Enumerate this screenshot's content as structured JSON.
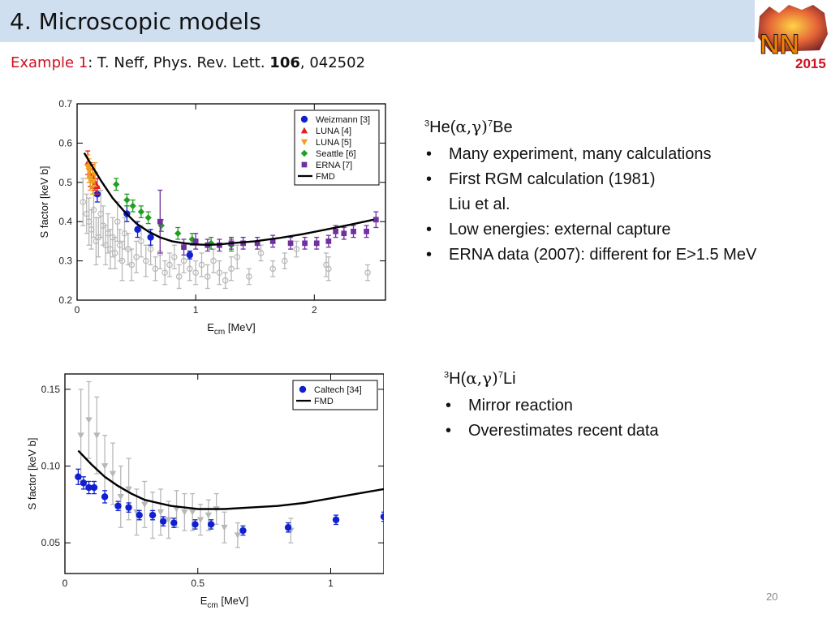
{
  "slide": {
    "title": "4. Microscopic models",
    "reference": {
      "example": "Example 1",
      "rest": ": T. Neff, Phys. Rev. Lett. ",
      "volume": "106",
      "page": ", 042502"
    },
    "logo": {
      "text": "NN",
      "year": "2015"
    },
    "page_number": "20"
  },
  "panels": [
    {
      "reaction": {
        "pre": "3",
        "a": "He(",
        "b": "α,γ)",
        "sup2": "7",
        "c": "Be"
      },
      "bullets": [
        "Many experiment, many calculations",
        "First RGM calculation (1981)",
        "Liu et al.",
        "Low energies: external capture",
        "ERNA data (2007): different for E>1.5 MeV"
      ]
    },
    {
      "reaction": {
        "pre": "3",
        "a": "H(",
        "b": "α,γ)",
        "sup2": "7",
        "c": "Li"
      },
      "bullets": [
        "Mirror reaction",
        "Overestimates recent data"
      ]
    }
  ],
  "chart_data": [
    {
      "type": "scatter",
      "xlabel": "E",
      "xlabel_sub": "cm",
      "xlabel_unit": " [MeV]",
      "ylabel": "S factor [keV b]",
      "xlim": [
        0,
        2.6
      ],
      "ylim": [
        0.2,
        0.7
      ],
      "xticks": [
        "0",
        "1",
        "2"
      ],
      "xtick_values": [
        0,
        1,
        2
      ],
      "yticks": [
        "0.2",
        "0.3",
        "0.4",
        "0.5",
        "0.6",
        "0.7"
      ],
      "ytick_values": [
        0.2,
        0.3,
        0.4,
        0.5,
        0.6,
        0.7
      ],
      "legend_position": "top-right",
      "series": [
        {
          "name": "Weizmann [3]",
          "marker": "circle",
          "color": "#1020d0",
          "x": [
            0.17,
            0.42,
            0.51,
            0.62,
            0.95
          ],
          "y": [
            0.47,
            0.42,
            0.38,
            0.36,
            0.315
          ],
          "err": [
            0.02,
            0.02,
            0.02,
            0.02,
            0.01
          ]
        },
        {
          "name": "LUNA [4]",
          "marker": "triangle-up",
          "color": "#e02020",
          "x": [
            0.09,
            0.11,
            0.13,
            0.15,
            0.17
          ],
          "y": [
            0.55,
            0.52,
            0.515,
            0.5,
            0.49
          ],
          "err": [
            0.03,
            0.03,
            0.03,
            0.02,
            0.02
          ]
        },
        {
          "name": "LUNA [5]",
          "marker": "triangle-down",
          "color": "#f0a020",
          "x": [
            0.09,
            0.1,
            0.11,
            0.13,
            0.15
          ],
          "y": [
            0.54,
            0.53,
            0.51,
            0.5,
            0.52
          ],
          "err": [
            0.03,
            0.03,
            0.03,
            0.03,
            0.03
          ]
        },
        {
          "name": "Seattle [6]",
          "marker": "diamond",
          "color": "#20a020",
          "x": [
            0.33,
            0.42,
            0.47,
            0.54,
            0.6,
            0.71,
            0.85,
            0.97,
            1.13,
            1.3
          ],
          "y": [
            0.495,
            0.455,
            0.44,
            0.425,
            0.41,
            0.39,
            0.37,
            0.355,
            0.345,
            0.34
          ],
          "err": [
            0.015,
            0.015,
            0.015,
            0.015,
            0.015,
            0.015,
            0.015,
            0.015,
            0.015,
            0.015
          ]
        },
        {
          "name": "ERNA [7]",
          "marker": "square",
          "color": "#7030a0",
          "x": [
            0.7,
            0.9,
            1.0,
            1.1,
            1.2,
            1.3,
            1.4,
            1.52,
            1.65,
            1.8,
            1.92,
            2.02,
            2.12,
            2.18,
            2.25,
            2.33,
            2.44,
            2.52
          ],
          "y": [
            0.4,
            0.335,
            0.35,
            0.34,
            0.34,
            0.345,
            0.345,
            0.345,
            0.35,
            0.345,
            0.345,
            0.345,
            0.35,
            0.375,
            0.37,
            0.375,
            0.375,
            0.405
          ],
          "err": [
            0.08,
            0.02,
            0.02,
            0.015,
            0.015,
            0.015,
            0.015,
            0.015,
            0.015,
            0.015,
            0.015,
            0.015,
            0.015,
            0.015,
            0.015,
            0.015,
            0.015,
            0.02
          ]
        },
        {
          "name": "",
          "marker": "circle-open",
          "color": "#b8b8b8",
          "x": [
            0.05,
            0.08,
            0.1,
            0.12,
            0.14,
            0.16,
            0.18,
            0.2,
            0.22,
            0.24,
            0.26,
            0.28,
            0.3,
            0.32,
            0.34,
            0.36,
            0.38,
            0.4,
            0.43,
            0.46,
            0.5,
            0.54,
            0.58,
            0.62,
            0.66,
            0.7,
            0.74,
            0.78,
            0.82,
            0.86,
            0.9,
            0.95,
            1.0,
            1.05,
            1.1,
            1.15,
            1.2,
            1.25,
            1.3,
            1.35,
            1.45,
            1.55,
            1.65,
            1.75,
            1.85,
            2.1,
            2.12,
            2.45
          ],
          "y": [
            0.45,
            0.42,
            0.4,
            0.38,
            0.43,
            0.35,
            0.36,
            0.42,
            0.39,
            0.34,
            0.37,
            0.33,
            0.36,
            0.32,
            0.4,
            0.34,
            0.3,
            0.37,
            0.33,
            0.29,
            0.31,
            0.35,
            0.3,
            0.33,
            0.28,
            0.32,
            0.27,
            0.29,
            0.31,
            0.26,
            0.3,
            0.28,
            0.27,
            0.29,
            0.26,
            0.3,
            0.27,
            0.25,
            0.28,
            0.31,
            0.26,
            0.32,
            0.28,
            0.3,
            0.33,
            0.29,
            0.28,
            0.27
          ],
          "err": [
            0.06,
            0.05,
            0.06,
            0.05,
            0.07,
            0.06,
            0.05,
            0.06,
            0.05,
            0.05,
            0.05,
            0.05,
            0.05,
            0.04,
            0.05,
            0.04,
            0.05,
            0.04,
            0.04,
            0.04,
            0.04,
            0.04,
            0.04,
            0.04,
            0.03,
            0.04,
            0.03,
            0.03,
            0.03,
            0.03,
            0.03,
            0.03,
            0.03,
            0.03,
            0.03,
            0.03,
            0.03,
            0.02,
            0.03,
            0.03,
            0.02,
            0.02,
            0.02,
            0.02,
            0.02,
            0.03,
            0.03,
            0.02
          ]
        }
      ],
      "curve": {
        "name": "FMD",
        "color": "#000000",
        "x": [
          0.06,
          0.1,
          0.2,
          0.3,
          0.4,
          0.5,
          0.6,
          0.7,
          0.8,
          0.9,
          1.0,
          1.1,
          1.2,
          1.3,
          1.5,
          1.7,
          1.9,
          2.1,
          2.3,
          2.5
        ],
        "y": [
          0.575,
          0.555,
          0.505,
          0.46,
          0.425,
          0.395,
          0.375,
          0.36,
          0.35,
          0.345,
          0.342,
          0.341,
          0.342,
          0.345,
          0.35,
          0.358,
          0.368,
          0.38,
          0.392,
          0.405
        ]
      }
    },
    {
      "type": "scatter",
      "xlabel": "E",
      "xlabel_sub": "cm",
      "xlabel_unit": " [MeV]",
      "ylabel": "S factor [keV b]",
      "xlim": [
        0,
        1.2
      ],
      "ylim": [
        0.03,
        0.16
      ],
      "xticks": [
        "0",
        "0.5",
        "1"
      ],
      "xtick_values": [
        0,
        0.5,
        1
      ],
      "yticks": [
        "0.05",
        "0.10",
        "0.15"
      ],
      "ytick_values": [
        0.05,
        0.1,
        0.15
      ],
      "legend_position": "top-right",
      "series": [
        {
          "name": "Caltech [34]",
          "marker": "circle",
          "color": "#1020d0",
          "x": [
            0.05,
            0.07,
            0.09,
            0.11,
            0.15,
            0.2,
            0.24,
            0.28,
            0.33,
            0.37,
            0.41,
            0.49,
            0.55,
            0.67,
            0.84,
            1.02,
            1.2
          ],
          "y": [
            0.093,
            0.089,
            0.086,
            0.086,
            0.08,
            0.074,
            0.073,
            0.068,
            0.068,
            0.064,
            0.063,
            0.062,
            0.062,
            0.058,
            0.06,
            0.065,
            0.067
          ],
          "err": [
            0.005,
            0.004,
            0.004,
            0.004,
            0.004,
            0.003,
            0.003,
            0.003,
            0.003,
            0.003,
            0.003,
            0.003,
            0.003,
            0.003,
            0.003,
            0.003,
            0.003
          ]
        },
        {
          "name": "",
          "marker": "triangle-gray",
          "color": "#b8b8b8",
          "x": [
            0.06,
            0.09,
            0.12,
            0.15,
            0.18,
            0.21,
            0.24,
            0.27,
            0.3,
            0.33,
            0.36,
            0.39,
            0.42,
            0.45,
            0.48,
            0.51,
            0.54,
            0.57,
            0.6,
            0.65,
            0.85
          ],
          "y": [
            0.12,
            0.13,
            0.12,
            0.1,
            0.095,
            0.08,
            0.085,
            0.07,
            0.075,
            0.068,
            0.07,
            0.065,
            0.072,
            0.07,
            0.07,
            0.065,
            0.068,
            0.072,
            0.06,
            0.055,
            0.058
          ],
          "err": [
            0.03,
            0.025,
            0.025,
            0.02,
            0.02,
            0.02,
            0.02,
            0.015,
            0.015,
            0.015,
            0.015,
            0.012,
            0.012,
            0.012,
            0.012,
            0.01,
            0.01,
            0.01,
            0.01,
            0.008,
            0.008
          ]
        }
      ],
      "curve": {
        "name": "FMD",
        "color": "#000000",
        "x": [
          0.05,
          0.1,
          0.15,
          0.2,
          0.25,
          0.3,
          0.35,
          0.4,
          0.45,
          0.5,
          0.55,
          0.6,
          0.7,
          0.8,
          0.9,
          1.0,
          1.1,
          1.2
        ],
        "y": [
          0.11,
          0.101,
          0.093,
          0.087,
          0.082,
          0.078,
          0.076,
          0.074,
          0.073,
          0.072,
          0.072,
          0.072,
          0.073,
          0.074,
          0.076,
          0.079,
          0.082,
          0.085
        ]
      }
    }
  ]
}
